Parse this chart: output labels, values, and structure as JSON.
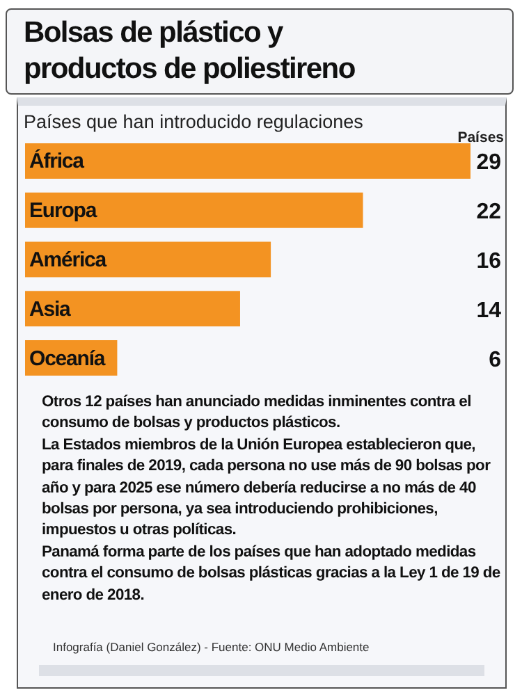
{
  "chart_data": {
    "type": "bar",
    "orientation": "horizontal",
    "title": "Bolsas de plástico y productos de poliestireno",
    "subtitle": "Países que han introducido regulaciones",
    "xlabel": "Países",
    "categories": [
      "África",
      "Europa",
      "América",
      "Asia",
      "Oceanía"
    ],
    "values": [
      29,
      22,
      16,
      14,
      6
    ],
    "color": "#f39322",
    "data_labels": true,
    "annotations": [
      "Otros 12 países han anunciado medidas inminentes contra el consumo de bolsas y productos  plásticos.",
      "La Estados miembros de la Unión Europea establecieron que, para finales de 2019, cada persona no use más de 90 bolsas por año y para 2025 ese número debería reducirse a no más de 40 bolsas por persona, ya sea introduciendo prohibiciones, impuestos u otras políticas.",
      "Panamá forma parte de los países que han adoptado medidas contra el consumo de bolsas plásticas gracias a la  Ley 1 de 19 de enero de 2018.",
      "Infografía (Daniel González) - Fuente: ONU Medio Ambiente"
    ]
  }
}
